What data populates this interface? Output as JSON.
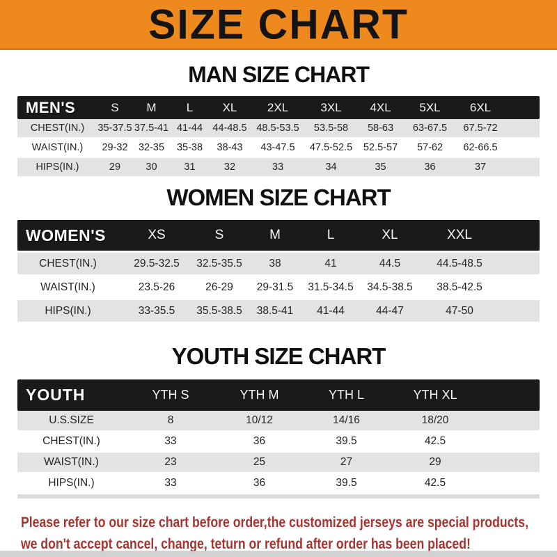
{
  "banner": {
    "title": "SIZE CHART"
  },
  "colors": {
    "banner_orange": "#ee8a1d",
    "header_black": "#1a1a1a",
    "row_gray": "#e3e3e3",
    "footer_red": "#a83430"
  },
  "chart_data": [
    {
      "type": "table",
      "title": "MAN SIZE CHART",
      "header": [
        "MEN'S",
        "S",
        "M",
        "L",
        "XL",
        "2XL",
        "3XL",
        "4XL",
        "5XL",
        "6XL"
      ],
      "rows": [
        [
          "CHEST(IN.)",
          "35-37.5",
          "37.5-41",
          "41-44",
          "44-48.5",
          "48.5-53.5",
          "53.5-58",
          "58-63",
          "63-67.5",
          "67.5-72"
        ],
        [
          "WAIST(IN.)",
          "29-32",
          "32-35",
          "35-38",
          "38-43",
          "43-47.5",
          "47.5-52.5",
          "52.5-57",
          "57-62",
          "62-66.5"
        ],
        [
          "HIPS(IN.)",
          "29",
          "30",
          "31",
          "32",
          "33",
          "34",
          "35",
          "36",
          "37"
        ]
      ]
    },
    {
      "type": "table",
      "title": "WOMEN SIZE CHART",
      "header": [
        "WOMEN'S",
        "XS",
        "S",
        "M",
        "L",
        "XL",
        "XXL"
      ],
      "rows": [
        [
          "CHEST(IN.)",
          "29.5-32.5",
          "32.5-35.5",
          "38",
          "41",
          "44.5",
          "44.5-48.5"
        ],
        [
          "WAIST(IN.)",
          "23.5-26",
          "26-29",
          "29-31.5",
          "31.5-34.5",
          "34.5-38.5",
          "38.5-42.5"
        ],
        [
          "HIPS(IN.)",
          "33-35.5",
          "35.5-38.5",
          "38.5-41",
          "41-44",
          "44-47",
          "47-50"
        ]
      ]
    },
    {
      "type": "table",
      "title": "YOUTH SIZE CHART",
      "header": [
        "YOUTH",
        "YTH S",
        "YTH M",
        "YTH L",
        "YTH XL"
      ],
      "rows": [
        [
          "U.S.SIZE",
          "8",
          "10/12",
          "14/16",
          "18/20"
        ],
        [
          "CHEST(IN.)",
          "33",
          "36",
          "39.5",
          "42.5"
        ],
        [
          "WAIST(IN.)",
          "23",
          "25",
          "27",
          "29"
        ],
        [
          "HIPS(IN.)",
          "33",
          "36",
          "39.5",
          "42.5"
        ]
      ]
    }
  ],
  "footer": {
    "line1": "Please refer to our size chart before order,the customized jerseys are special products,",
    "line2": "we don't accept cancel, change, teturn or refund after order has been placed!"
  }
}
